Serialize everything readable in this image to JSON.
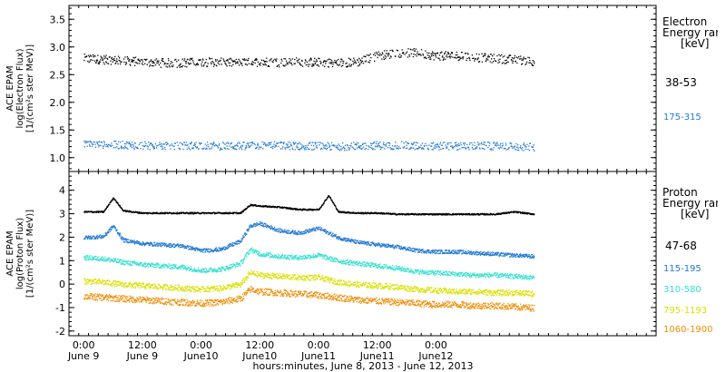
{
  "chart_data": [
    {
      "type": "scatter",
      "title": "",
      "ylabel_lines": [
        "ACE EPAM",
        "log(Electron Flux)",
        "[1/(cm²s ster MeV)]"
      ],
      "ylim": [
        0.75,
        3.75
      ],
      "yticks": [
        1.0,
        1.5,
        2.0,
        2.5,
        3.0,
        3.5
      ],
      "legend_header": [
        "Electron",
        "Energy range",
        "[keV]"
      ],
      "series": [
        {
          "name": "38-53",
          "color": "#000000",
          "x_hours": [
            0,
            4,
            8,
            12,
            16,
            20,
            24,
            28,
            32,
            36,
            40,
            44,
            48,
            52,
            56,
            60,
            64,
            68,
            72,
            76,
            80,
            84,
            88,
            92
          ],
          "values": [
            2.8,
            2.78,
            2.76,
            2.74,
            2.72,
            2.72,
            2.74,
            2.73,
            2.72,
            2.74,
            2.73,
            2.74,
            2.73,
            2.72,
            2.74,
            2.85,
            2.9,
            2.9,
            2.85,
            2.85,
            2.82,
            2.8,
            2.78,
            2.75
          ]
        },
        {
          "name": "175-315",
          "color": "#1f78d4",
          "x_hours": [
            0,
            4,
            8,
            12,
            16,
            20,
            24,
            28,
            32,
            36,
            40,
            44,
            48,
            52,
            56,
            60,
            64,
            68,
            72,
            76,
            80,
            84,
            88,
            92
          ],
          "values": [
            1.25,
            1.24,
            1.24,
            1.23,
            1.22,
            1.22,
            1.23,
            1.22,
            1.22,
            1.23,
            1.23,
            1.22,
            1.22,
            1.21,
            1.22,
            1.23,
            1.23,
            1.22,
            1.22,
            1.22,
            1.22,
            1.22,
            1.21,
            1.2
          ]
        }
      ]
    },
    {
      "type": "scatter",
      "title": "",
      "ylabel_lines": [
        "ACE EPAM",
        "log(Proton Flux)",
        "[1/(cm²s ster MeV)]"
      ],
      "ylim": [
        -2.2,
        4.8
      ],
      "yticks": [
        -2,
        -1,
        0,
        1,
        2,
        3,
        4
      ],
      "legend_header": [
        "Proton",
        "Energy range",
        "[keV]"
      ],
      "series": [
        {
          "name": "47-68",
          "color": "#000000",
          "x_hours": [
            0,
            4,
            6,
            8,
            12,
            16,
            20,
            24,
            28,
            32,
            34,
            36,
            40,
            44,
            48,
            50,
            52,
            56,
            60,
            64,
            68,
            72,
            76,
            80,
            84,
            88,
            92
          ],
          "values": [
            3.1,
            3.1,
            3.7,
            3.15,
            3.05,
            3.05,
            3.05,
            3.05,
            3.05,
            3.05,
            3.4,
            3.35,
            3.3,
            3.2,
            3.2,
            3.8,
            3.1,
            3.05,
            3.05,
            3.0,
            3.0,
            3.0,
            3.0,
            3.0,
            3.0,
            3.1,
            3.0
          ]
        },
        {
          "name": "115-195",
          "color": "#1f78d4",
          "x_hours": [
            0,
            4,
            6,
            8,
            12,
            16,
            20,
            24,
            28,
            32,
            34,
            36,
            40,
            44,
            48,
            52,
            56,
            60,
            64,
            68,
            72,
            76,
            80,
            84,
            88,
            92
          ],
          "values": [
            2.0,
            2.05,
            2.5,
            1.9,
            1.75,
            1.7,
            1.65,
            1.45,
            1.5,
            1.85,
            2.5,
            2.6,
            2.3,
            2.2,
            2.4,
            2.0,
            1.8,
            1.7,
            1.6,
            1.45,
            1.4,
            1.4,
            1.35,
            1.3,
            1.25,
            1.2
          ]
        },
        {
          "name": "310-580",
          "color": "#33e0d0",
          "x_hours": [
            0,
            4,
            8,
            12,
            16,
            20,
            24,
            28,
            32,
            34,
            36,
            40,
            44,
            48,
            52,
            56,
            60,
            64,
            68,
            72,
            76,
            80,
            84,
            88,
            92
          ],
          "values": [
            1.15,
            1.1,
            0.95,
            0.85,
            0.8,
            0.75,
            0.6,
            0.65,
            0.9,
            1.5,
            1.3,
            1.2,
            1.15,
            1.25,
            1.0,
            0.9,
            0.8,
            0.7,
            0.55,
            0.5,
            0.45,
            0.4,
            0.4,
            0.35,
            0.3
          ]
        },
        {
          "name": "795-1193",
          "color": "#d9e000",
          "x_hours": [
            0,
            4,
            8,
            12,
            16,
            20,
            24,
            28,
            32,
            34,
            36,
            40,
            44,
            48,
            52,
            56,
            60,
            64,
            68,
            72,
            76,
            80,
            84,
            88,
            92
          ],
          "values": [
            0.15,
            0.1,
            0.0,
            -0.05,
            -0.1,
            -0.15,
            -0.2,
            -0.15,
            0.0,
            0.5,
            0.4,
            0.35,
            0.3,
            0.3,
            0.1,
            0.0,
            -0.05,
            -0.1,
            -0.2,
            -0.25,
            -0.3,
            -0.3,
            -0.35,
            -0.35,
            -0.4
          ]
        },
        {
          "name": "1060-1900",
          "color": "#f08c00",
          "x_hours": [
            0,
            4,
            8,
            12,
            16,
            20,
            24,
            28,
            32,
            34,
            36,
            40,
            44,
            48,
            52,
            56,
            60,
            64,
            68,
            72,
            76,
            80,
            84,
            88,
            92
          ],
          "values": [
            -0.5,
            -0.55,
            -0.6,
            -0.65,
            -0.7,
            -0.75,
            -0.8,
            -0.75,
            -0.6,
            -0.2,
            -0.3,
            -0.35,
            -0.4,
            -0.45,
            -0.55,
            -0.65,
            -0.7,
            -0.75,
            -0.8,
            -0.85,
            -0.85,
            -0.9,
            -0.9,
            -0.95,
            -1.0
          ]
        }
      ]
    }
  ],
  "x_axis": {
    "xlim_hours": [
      -3,
      117
    ],
    "major_ticks_hours": [
      0,
      24,
      48,
      72,
      96
    ],
    "tick_labels": [
      {
        "hours": 0,
        "time": "0:00",
        "date": "June 9"
      },
      {
        "hours": 12,
        "time": "12:00",
        "date": "June 9"
      },
      {
        "hours": 24,
        "time": "0:00",
        "date": "June10"
      },
      {
        "hours": 36,
        "time": "12:00",
        "date": "June10"
      },
      {
        "hours": 48,
        "time": "0:00",
        "date": "June11"
      },
      {
        "hours": 60,
        "time": "12:00",
        "date": "June11"
      },
      {
        "hours": 72,
        "time": "0:00",
        "date": "June12"
      }
    ],
    "label": "hours:minutes, June  8, 2013 - June 12, 2013"
  }
}
